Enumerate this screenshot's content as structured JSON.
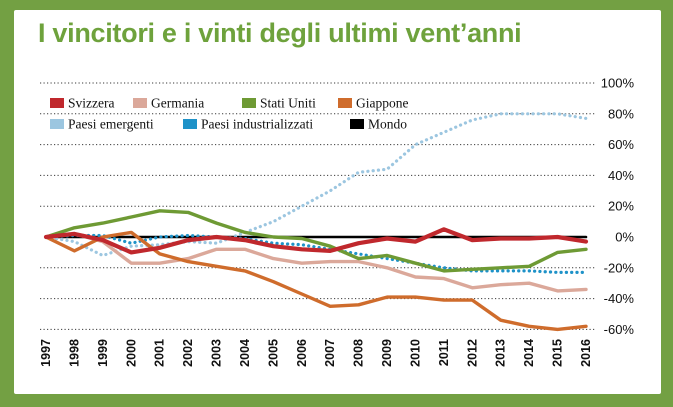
{
  "title": "I vincitori e i vinti degli ultimi vent’anni",
  "chart_data": {
    "type": "line",
    "x": [
      1997,
      1998,
      1999,
      2000,
      2001,
      2002,
      2003,
      2004,
      2005,
      2006,
      2007,
      2008,
      2009,
      2010,
      2011,
      2012,
      2013,
      2014,
      2015,
      2016
    ],
    "x_tick_labels": [
      "1997",
      "1998",
      "1999",
      "2000",
      "2001",
      "2002",
      "2003",
      "2004",
      "2005",
      "2006",
      "2007",
      "2008",
      "2009",
      "2010",
      "2011",
      "2012",
      "2013",
      "2014",
      "2015",
      "2016"
    ],
    "y_tick_labels": [
      "100%",
      "80%",
      "60%",
      "40%",
      "20%",
      "0%",
      "-20%",
      "-40%",
      "-60%"
    ],
    "y_ticks": [
      100,
      80,
      60,
      40,
      20,
      0,
      -20,
      -40,
      -60
    ],
    "ylim": [
      -62,
      102
    ],
    "grid": "horizontal dotted",
    "legend_position": "top-left",
    "series": [
      {
        "name": "Svizzera",
        "color": "#c0282d",
        "style": "solid-thick",
        "values": [
          0,
          2,
          -2,
          -10,
          -7,
          -2,
          0,
          -2,
          -6,
          -8,
          -9,
          -4,
          -1,
          -3,
          5,
          -2,
          -1,
          -1,
          0,
          -3
        ]
      },
      {
        "name": "Germania",
        "color": "#dba89a",
        "style": "solid",
        "values": [
          0,
          2,
          -3,
          -17,
          -17,
          -14,
          -8,
          -8,
          -14,
          -17,
          -16,
          -16,
          -20,
          -26,
          -27,
          -33,
          -31,
          -30,
          -35,
          -34
        ]
      },
      {
        "name": "Stati Uniti",
        "color": "#6e9a34",
        "style": "solid",
        "values": [
          0,
          6,
          9,
          13,
          17,
          16,
          9,
          3,
          0,
          -1,
          -6,
          -14,
          -12,
          -17,
          -22,
          -21,
          -20,
          -19,
          -10,
          -8
        ]
      },
      {
        "name": "Giappone",
        "color": "#cf6c2c",
        "style": "solid",
        "values": [
          0,
          -9,
          0,
          3,
          -11,
          -16,
          -19,
          -22,
          -29,
          -37,
          -45,
          -44,
          -39,
          -39,
          -41,
          -41,
          -54,
          -58,
          -60,
          -58
        ]
      },
      {
        "name": "Paesi emergenti",
        "color": "#9cc6e0",
        "style": "dotted",
        "values": [
          0,
          -3,
          -12,
          -6,
          -5,
          -3,
          -4,
          3,
          10,
          20,
          30,
          42,
          44,
          60,
          68,
          76,
          80,
          80,
          80,
          77
        ]
      },
      {
        "name": "Paesi industrializzati",
        "color": "#1e92c8",
        "style": "dotted",
        "values": [
          0,
          1,
          1,
          -4,
          0,
          1,
          0,
          -1,
          -4,
          -5,
          -8,
          -11,
          -14,
          -17,
          -20,
          -22,
          -22,
          -22,
          -23,
          -23
        ]
      },
      {
        "name": "Mondo",
        "color": "#000000",
        "style": "solid",
        "values": [
          0,
          0,
          0,
          0,
          0,
          0,
          0,
          0,
          0,
          0,
          0,
          0,
          0,
          0,
          0,
          0,
          0,
          0,
          0,
          0
        ]
      }
    ]
  }
}
